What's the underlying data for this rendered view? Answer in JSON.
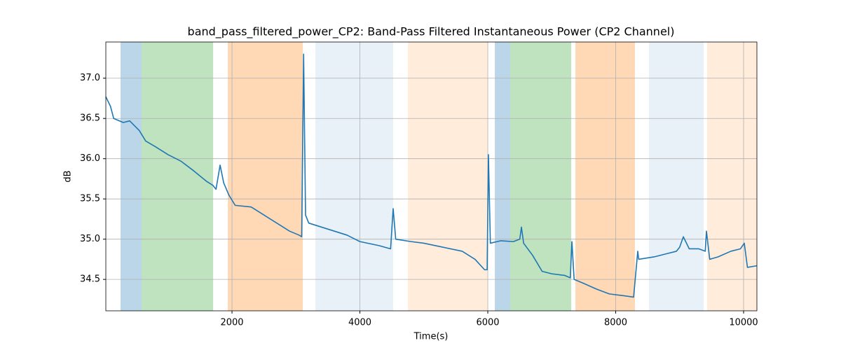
{
  "chart_data": {
    "type": "line",
    "title": "band_pass_filtered_power_CP2: Band-Pass Filtered Instantaneous Power (CP2 Channel)",
    "xlabel": "Time(s)",
    "ylabel": "dB",
    "xlim": [
      27,
      10208
    ],
    "ylim": [
      34.11,
      37.45
    ],
    "xticks": [
      2000,
      4000,
      6000,
      8000,
      10000
    ],
    "yticks": [
      34.5,
      {
        "value": 35,
        "label": "35.0"
      },
      35.5,
      {
        "value": 36,
        "label": "36.0"
      },
      36.5,
      {
        "value": 37,
        "label": "37.0"
      }
    ],
    "grid": true,
    "color": "#1f77b4",
    "x": [
      27,
      100,
      150,
      300,
      400,
      550,
      650,
      800,
      1000,
      1200,
      1400,
      1600,
      1700,
      1750,
      1814,
      1870,
      1950,
      2050,
      2300,
      2500,
      2700,
      2900,
      3050,
      3090,
      3120,
      3150,
      3200,
      3400,
      3600,
      3800,
      4000,
      4300,
      4480,
      4520,
      4560,
      4800,
      5000,
      5300,
      5600,
      5800,
      5950,
      5990,
      6010,
      6040,
      6200,
      6400,
      6500,
      6526,
      6560,
      6700,
      6850,
      7000,
      7200,
      7290,
      7315,
      7350,
      7500,
      7700,
      7900,
      8100,
      8280,
      8345,
      8360,
      8600,
      8800,
      8950,
      9000,
      9058,
      9150,
      9300,
      9400,
      9419,
      9470,
      9600,
      9800,
      9950,
      10011,
      10060,
      10208
    ],
    "values": [
      36.77,
      36.65,
      36.5,
      36.45,
      36.47,
      36.35,
      36.22,
      36.15,
      36.05,
      35.97,
      35.85,
      35.72,
      35.67,
      35.62,
      35.92,
      35.7,
      35.55,
      35.42,
      35.4,
      35.3,
      35.2,
      35.1,
      35.05,
      35.03,
      37.3,
      35.3,
      35.2,
      35.15,
      35.1,
      35.05,
      34.97,
      34.92,
      34.88,
      35.38,
      35.0,
      34.97,
      34.95,
      34.9,
      34.85,
      34.75,
      34.62,
      34.62,
      36.05,
      34.95,
      34.98,
      34.97,
      35.0,
      35.15,
      34.95,
      34.8,
      34.6,
      34.57,
      34.55,
      34.52,
      34.97,
      34.5,
      34.45,
      34.38,
      34.32,
      34.3,
      34.28,
      34.85,
      34.75,
      34.78,
      34.82,
      34.85,
      34.9,
      35.03,
      34.88,
      34.88,
      34.85,
      35.1,
      34.75,
      34.78,
      34.85,
      34.88,
      34.95,
      34.65,
      34.67
    ],
    "spans": [
      {
        "start": 257,
        "end": 586,
        "color": "#1f77b4",
        "alpha": 0.3
      },
      {
        "start": 586,
        "end": 1705,
        "color": "#2ca02c",
        "alpha": 0.3
      },
      {
        "start": 1934,
        "end": 3107,
        "color": "#ff7f0e",
        "alpha": 0.3
      },
      {
        "start": 3304,
        "end": 4521,
        "color": "#1f77b4",
        "alpha": 0.1
      },
      {
        "start": 4751,
        "end": 6000,
        "color": "#ff7f0e",
        "alpha": 0.15
      },
      {
        "start": 6110,
        "end": 6351,
        "color": "#1f77b4",
        "alpha": 0.3
      },
      {
        "start": 6351,
        "end": 7304,
        "color": "#2ca02c",
        "alpha": 0.3
      },
      {
        "start": 7370,
        "end": 8301,
        "color": "#ff7f0e",
        "alpha": 0.3
      },
      {
        "start": 8521,
        "end": 9375,
        "color": "#1f77b4",
        "alpha": 0.1
      },
      {
        "start": 9430,
        "end": 10208,
        "color": "#ff7f0e",
        "alpha": 0.15
      }
    ]
  }
}
